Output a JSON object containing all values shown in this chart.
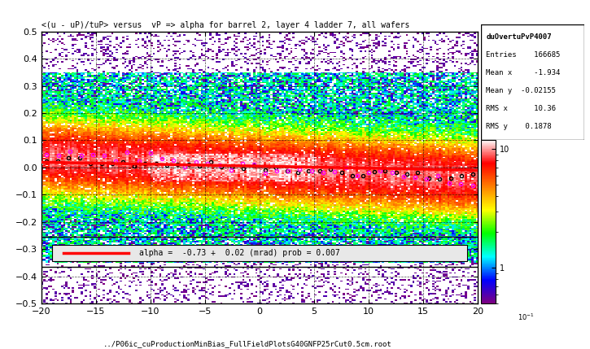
{
  "title": "<(u - uP)/tuP> versus  vP => alpha for barrel 2, layer 4 ladder 7, all wafers",
  "xlabel": "",
  "ylabel": "",
  "xmin": -20,
  "xmax": 20,
  "ymin": -0.5,
  "ymax": 0.5,
  "stats_title": "duOvertuPvP4007",
  "entries": "166685",
  "mean_x": "-1.934",
  "mean_y": "-0.02155",
  "rms_x": "10.36",
  "rms_y": "0.1878",
  "fit_label": "alpha =  -0.73 +  0.02 (mrad) prob = 0.007",
  "fit_slope": -0.02,
  "fit_intercept": 0.0,
  "colorbar_min": 0.1,
  "colorbar_max": 10,
  "source_file": "../P06ic_cuProductionMinBias_FullFieldPlotsG40GNFP25rCut0.5cm.root",
  "background_color": "#ffffff"
}
